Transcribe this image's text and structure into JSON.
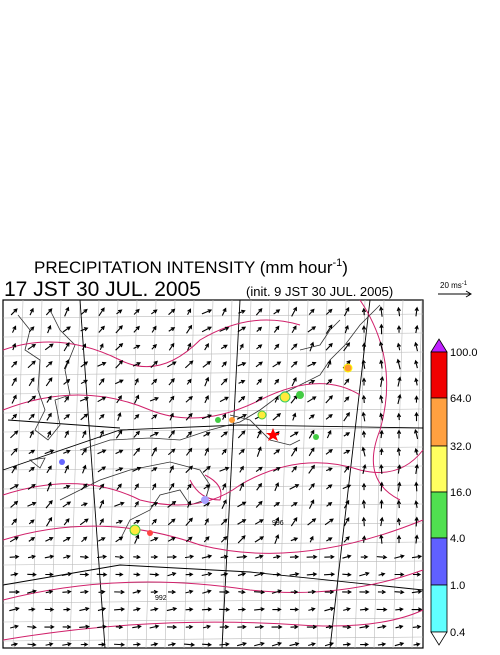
{
  "header": {
    "title": "PRECIPITATION INTENSITY (mm hour",
    "title_sup": "-1",
    "title_close": ")",
    "time": "17 JST 30 JUL. 2005",
    "init": "(init. 9 JST 30 JUL. 2005)"
  },
  "scale": {
    "label": "20 ms",
    "sup": "-1"
  },
  "colorbar": {
    "labels": [
      "100.0",
      "64.0",
      "32.0",
      "16.0",
      "4.0",
      "1.0",
      "0.4"
    ]
  },
  "isobars": {
    "labels": [
      "996",
      "992"
    ]
  }
}
